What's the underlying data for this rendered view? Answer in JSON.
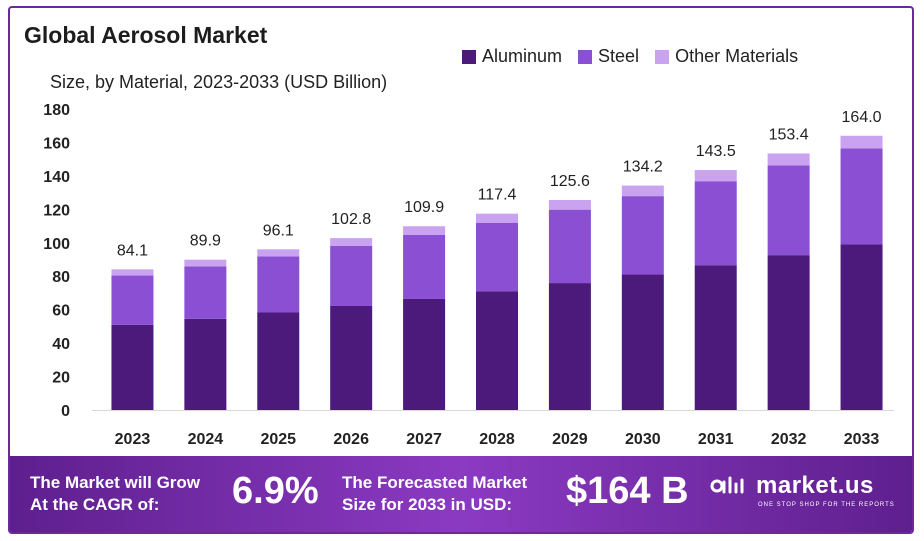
{
  "title": "Global Aerosol Market",
  "subtitle": "Size, by Material, 2023-2033 (USD Billion)",
  "colors": {
    "aluminum": "#4b1a7a",
    "steel": "#8a4fd3",
    "other": "#c9a3f0"
  },
  "chart_data": {
    "type": "bar",
    "stacked": true,
    "categories": [
      "2023",
      "2024",
      "2025",
      "2026",
      "2027",
      "2028",
      "2029",
      "2030",
      "2031",
      "2032",
      "2033"
    ],
    "series": [
      {
        "name": "Aluminum",
        "values": [
          51,
          54.5,
          58.3,
          62.2,
          66.4,
          70.9,
          75.9,
          81.0,
          86.6,
          92.6,
          99.0
        ]
      },
      {
        "name": "Steel",
        "values": [
          29.4,
          31.4,
          33.6,
          36.0,
          38.4,
          41.1,
          43.9,
          46.9,
          50.2,
          53.7,
          57.4
        ]
      },
      {
        "name": "Other Materials",
        "values": [
          3.7,
          4.0,
          4.2,
          4.6,
          5.1,
          5.4,
          5.8,
          6.3,
          6.7,
          7.1,
          7.6
        ]
      }
    ],
    "totals": [
      "84.1",
      "89.9",
      "96.1",
      "102.8",
      "109.9",
      "117.4",
      "125.6",
      "134.2",
      "143.5",
      "153.4",
      "164.0"
    ],
    "yticks": [
      "0",
      "20",
      "40",
      "60",
      "80",
      "100",
      "120",
      "140",
      "160",
      "180"
    ],
    "ylim": [
      0,
      180
    ],
    "legend": "top-right"
  },
  "banner": {
    "cagr_label_1": "The Market will Grow",
    "cagr_label_2": "At the CAGR of:",
    "cagr_value": "6.9%",
    "forecast_label_1": "The Forecasted Market",
    "forecast_label_2": "Size for 2033 in USD:",
    "forecast_value": "$164 B",
    "logo_text": "market.us",
    "logo_tagline": "ONE STOP SHOP FOR THE REPORTS"
  }
}
